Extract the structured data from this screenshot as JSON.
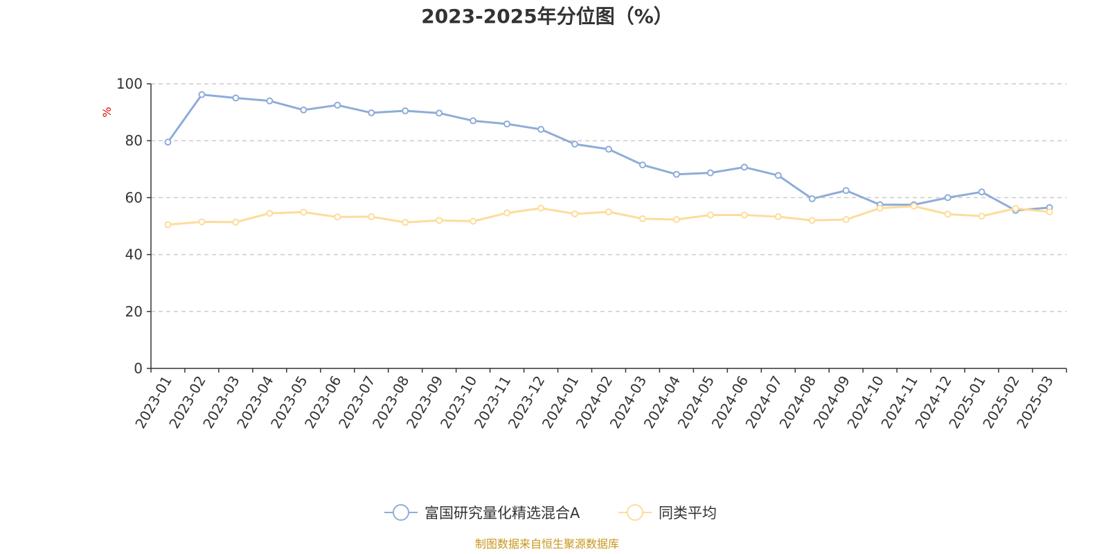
{
  "chart_data": {
    "type": "line",
    "title": "2023-2025年分位图（%）",
    "ylabel": "%",
    "ylim": [
      0,
      100
    ],
    "yticks": [
      0,
      20,
      40,
      60,
      80,
      100
    ],
    "grid": true,
    "legend_position": "bottom",
    "categories": [
      "2023-01",
      "2023-02",
      "2023-03",
      "2023-04",
      "2023-05",
      "2023-06",
      "2023-07",
      "2023-08",
      "2023-09",
      "2023-10",
      "2023-11",
      "2023-12",
      "2024-01",
      "2024-02",
      "2024-03",
      "2024-04",
      "2024-05",
      "2024-06",
      "2024-07",
      "2024-08",
      "2024-09",
      "2024-10",
      "2024-11",
      "2024-12",
      "2025-01",
      "2025-02",
      "2025-03"
    ],
    "series": [
      {
        "name": "富国研究量化精选混合A",
        "color": "#8eacd9",
        "values": [
          79.5,
          96.2,
          95.0,
          94.0,
          90.8,
          92.5,
          89.8,
          90.5,
          89.7,
          87.0,
          85.9,
          84.0,
          78.8,
          77.0,
          71.5,
          68.2,
          68.7,
          70.7,
          67.8,
          59.6,
          62.5,
          57.5,
          57.5,
          60.0,
          62.0,
          55.5,
          56.5
        ]
      },
      {
        "name": "同类平均",
        "color": "#fddc9b",
        "values": [
          50.5,
          51.5,
          51.4,
          54.5,
          54.9,
          53.2,
          53.3,
          51.3,
          52.0,
          51.7,
          54.6,
          56.3,
          54.3,
          55.0,
          52.6,
          52.3,
          53.9,
          53.9,
          53.3,
          52.0,
          52.3,
          56.3,
          57.0,
          54.2,
          53.5,
          56.2,
          55.0
        ]
      }
    ]
  },
  "footer": {
    "source": "制图数据来自恒生聚源数据库"
  }
}
